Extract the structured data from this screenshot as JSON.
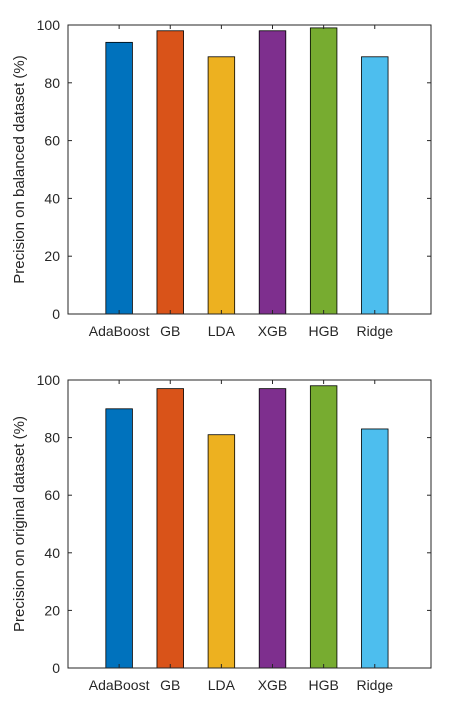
{
  "chart_data": [
    {
      "type": "bar",
      "categories": [
        "AdaBoost",
        "GB",
        "LDA",
        "XGB",
        "HGB",
        "Ridge"
      ],
      "values": [
        94,
        98,
        89,
        98,
        99,
        89
      ],
      "colors": [
        "#0072BD",
        "#D95319",
        "#EDB120",
        "#7E2F8E",
        "#77AC30",
        "#4DBEEE"
      ],
      "title": "",
      "xlabel": "",
      "ylabel": "Precision on balanced dataset (%)",
      "ylim": [
        0,
        100
      ],
      "yticks": [
        0,
        20,
        40,
        60,
        80,
        100
      ],
      "grid": false,
      "legend": null
    },
    {
      "type": "bar",
      "categories": [
        "AdaBoost",
        "GB",
        "LDA",
        "XGB",
        "HGB",
        "Ridge"
      ],
      "values": [
        90,
        97,
        81,
        97,
        98,
        83
      ],
      "colors": [
        "#0072BD",
        "#D95319",
        "#EDB120",
        "#7E2F8E",
        "#77AC30",
        "#4DBEEE"
      ],
      "title": "",
      "xlabel": "",
      "ylabel": "Precision on original dataset (%)",
      "ylim": [
        0,
        100
      ],
      "yticks": [
        0,
        20,
        40,
        60,
        80,
        100
      ],
      "grid": false,
      "legend": null
    }
  ]
}
